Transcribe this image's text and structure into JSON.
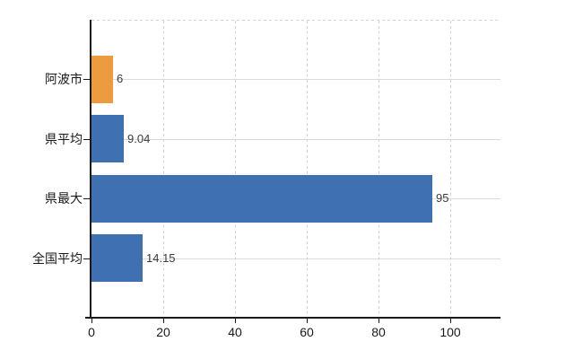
{
  "chart_data": {
    "type": "bar",
    "orientation": "horizontal",
    "title": "",
    "xlabel": "",
    "ylabel": "",
    "categories": [
      "阿波市",
      "県平均",
      "県最大",
      "全国平均"
    ],
    "values": [
      6,
      9.04,
      95,
      14.15
    ],
    "value_labels": [
      "6",
      "9.04",
      "95",
      "14.15"
    ],
    "bar_colors": [
      "#EC9C3E",
      "#3E70B2",
      "#3E70B2",
      "#3E70B2"
    ],
    "x_tick_values": [
      0,
      20,
      40,
      60,
      80,
      100
    ],
    "x_tick_labels": [
      "0",
      "20",
      "40",
      "60",
      "80",
      "100"
    ],
    "xlim": [
      0,
      114
    ],
    "legend": "none",
    "grid": {
      "horizontal": "solid",
      "vertical": "dashed",
      "top_border": "dashed"
    }
  },
  "colors": {
    "bar_blue": "#3E70B2",
    "bar_orange": "#EC9C3E",
    "grid_solid": "#D9DDD9",
    "grid_dashed": "#D4D4DB",
    "axis": "#1A1A1A",
    "category_text": "#1A1A1A",
    "value_text": "#3A3A3A",
    "background": "#FFFFFF"
  }
}
